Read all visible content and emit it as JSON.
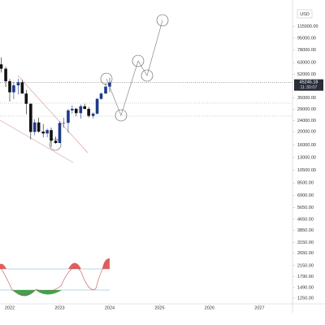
{
  "chart_data": {
    "type": "candlestick",
    "currency": "USD",
    "x": [
      2021.83,
      2021.92,
      2022.0,
      2022.08,
      2022.17,
      2022.25,
      2022.33,
      2022.42,
      2022.5,
      2022.58,
      2022.67,
      2022.75,
      2022.83,
      2022.92,
      2023.0,
      2023.08,
      2023.17,
      2023.25,
      2023.33,
      2023.42,
      2023.5,
      2023.58,
      2023.67,
      2023.75,
      2023.83,
      2023.92,
      2024.0
    ],
    "open": [
      61300,
      57000,
      46300,
      38500,
      43200,
      45500,
      37700,
      31800,
      19900,
      23300,
      20000,
      19400,
      20500,
      17200,
      16550,
      23100,
      23150,
      28500,
      29250,
      27200,
      30500,
      29200,
      26000,
      27000,
      34500,
      37700,
      42300
    ],
    "high": [
      69000,
      59000,
      48000,
      45800,
      48200,
      47400,
      40000,
      32000,
      24600,
      25200,
      22700,
      21000,
      21400,
      18400,
      23900,
      25200,
      29200,
      31000,
      29800,
      31400,
      31800,
      30200,
      27500,
      35000,
      38400,
      44700,
      48900
    ],
    "low": [
      53500,
      42000,
      33000,
      34300,
      37200,
      37700,
      26700,
      17600,
      18800,
      19600,
      18200,
      18200,
      15500,
      16300,
      16500,
      21400,
      19600,
      26900,
      25900,
      24800,
      28900,
      25300,
      24900,
      26600,
      34000,
      37600,
      38500
    ],
    "close": [
      57000,
      46300,
      38500,
      43200,
      45500,
      37700,
      31800,
      19900,
      23300,
      20000,
      19400,
      20500,
      17200,
      16550,
      23100,
      23150,
      28500,
      29250,
      27200,
      30500,
      29200,
      26000,
      27000,
      34500,
      37700,
      42300,
      45245.18
    ],
    "up_color": "#1e3a8a",
    "down_color": "#111111",
    "last_price": 45245.18,
    "countdown": "11:30:07",
    "log_scale": true,
    "xlim": [
      2021.805,
      2027.66
    ],
    "xticks": [
      2022,
      2023,
      2024,
      2025,
      2026,
      2027
    ],
    "ylim": [
      1136,
      179000
    ],
    "yticks": [
      {
        "value": 115000,
        "label": "115000.00"
      },
      {
        "value": 95000,
        "label": "95000.00"
      },
      {
        "value": 78000,
        "label": "78000.00"
      },
      {
        "value": 63000,
        "label": "63000.00"
      },
      {
        "value": 52000,
        "label": "52000.00"
      },
      {
        "value": 35000,
        "label": "35000.00"
      },
      {
        "value": 29000,
        "label": "29000.00"
      },
      {
        "value": 24000,
        "label": "24000.00"
      },
      {
        "value": 20000,
        "label": "20000.00"
      },
      {
        "value": 16000,
        "label": "16000.00"
      },
      {
        "value": 13000,
        "label": "13000.00"
      },
      {
        "value": 10500,
        "label": "10500.00"
      },
      {
        "value": 8500,
        "label": "8500.00"
      },
      {
        "value": 6900,
        "label": "6900.00"
      },
      {
        "value": 5650,
        "label": "5650.00"
      },
      {
        "value": 4650,
        "label": "4650.00"
      },
      {
        "value": 3850,
        "label": "3850.00"
      },
      {
        "value": 3150,
        "label": "3150.00"
      },
      {
        "value": 2650,
        "label": "2650.00"
      },
      {
        "value": 2150,
        "label": "2150.00"
      },
      {
        "value": 1790,
        "label": "1790.00"
      },
      {
        "value": 1490,
        "label": "1490.00"
      },
      {
        "value": 1250,
        "label": "1250.00"
      }
    ]
  }
}
